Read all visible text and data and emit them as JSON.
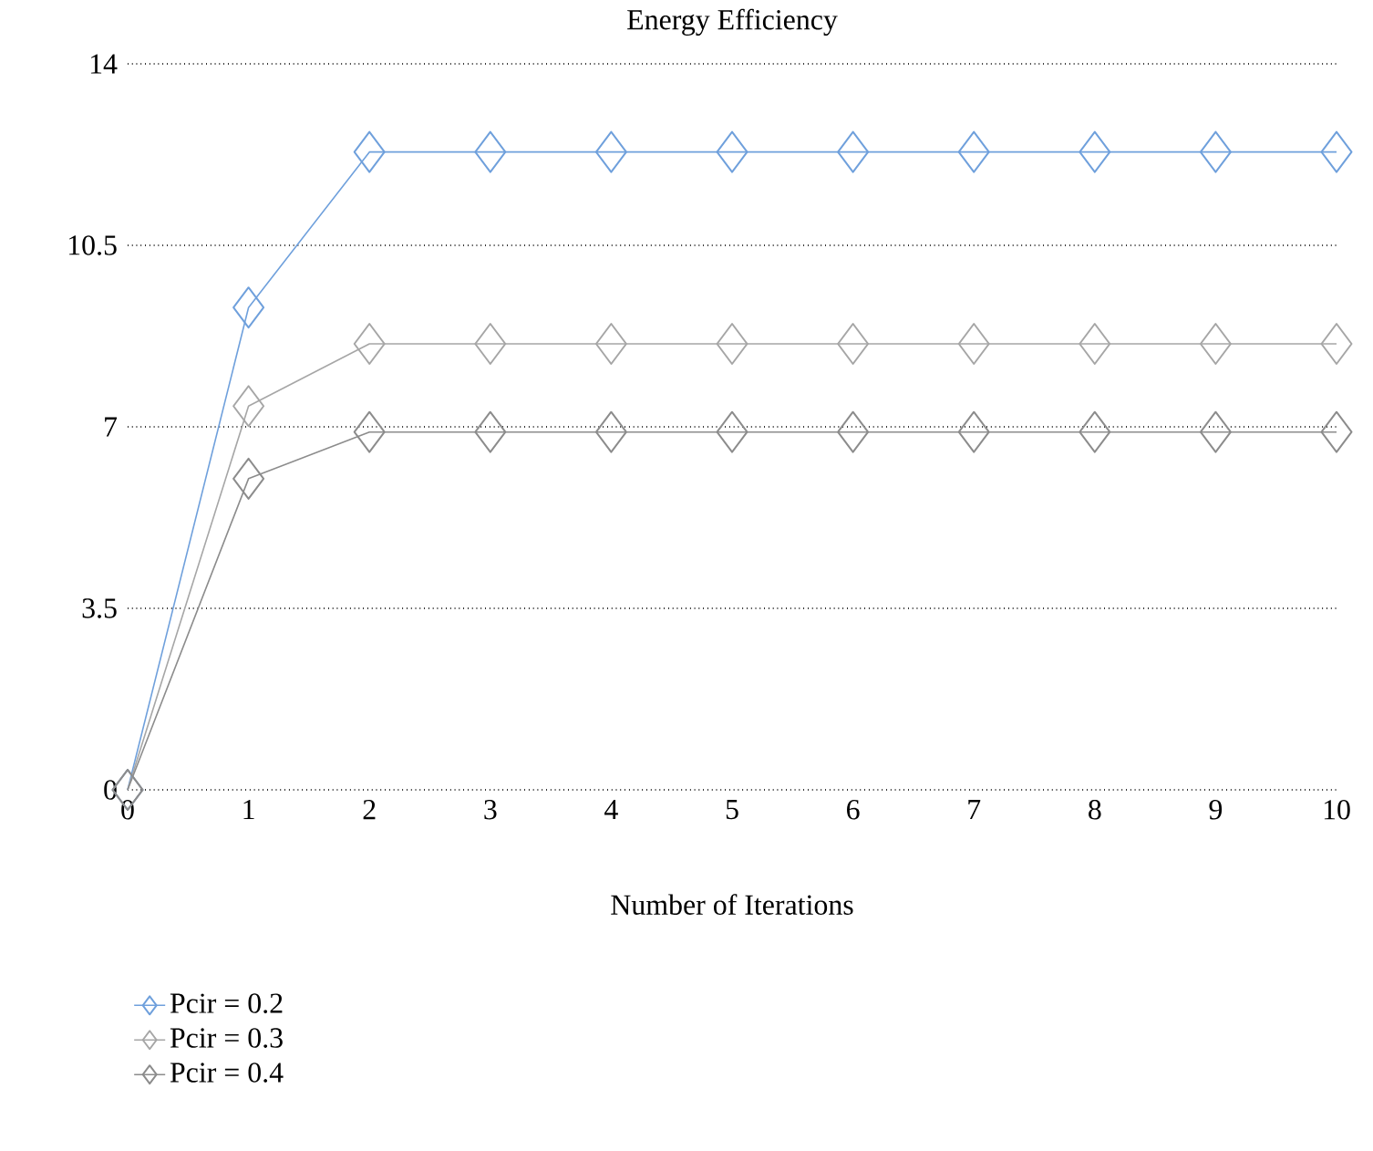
{
  "chart_data": {
    "type": "line",
    "title": "Energy Efficiency",
    "xlabel": "Number of Iterations",
    "x": [
      0,
      1,
      2,
      3,
      4,
      5,
      6,
      7,
      8,
      9,
      10
    ],
    "xlim": [
      0,
      10
    ],
    "xticks": [
      0,
      1,
      2,
      3,
      4,
      5,
      6,
      7,
      8,
      9,
      10
    ],
    "ylim": [
      0,
      14
    ],
    "yticks": [
      0,
      3.5,
      7,
      10.5,
      14
    ],
    "grid": "y",
    "legend": "bottom left",
    "marker": "diamond",
    "line_style": "solid",
    "series": [
      {
        "name": "Pcir = 0.2",
        "color": "#6fa0dc",
        "values": [
          0,
          9.3,
          12.3,
          12.3,
          12.3,
          12.3,
          12.3,
          12.3,
          12.3,
          12.3,
          12.3
        ]
      },
      {
        "name": "Pcir = 0.3",
        "color": "#a6a6a6",
        "values": [
          0,
          7.4,
          8.6,
          8.6,
          8.6,
          8.6,
          8.6,
          8.6,
          8.6,
          8.6,
          8.6
        ]
      },
      {
        "name": "Pcir = 0.4",
        "color": "#8c8c8c",
        "values": [
          0,
          6.0,
          6.9,
          6.9,
          6.9,
          6.9,
          6.9,
          6.9,
          6.9,
          6.9,
          6.9
        ]
      }
    ]
  }
}
